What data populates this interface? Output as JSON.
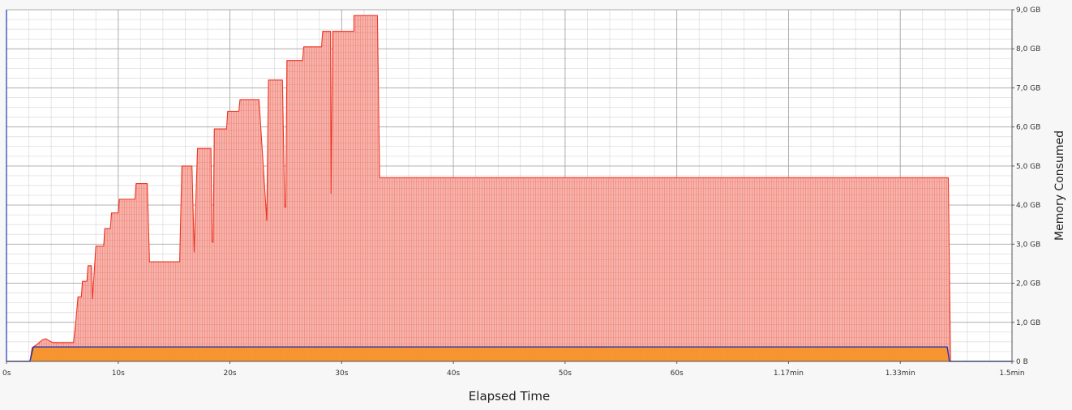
{
  "chart_data": {
    "type": "area",
    "xlabel": "Elapsed Time",
    "ylabel": "Memory Consumed",
    "x_unit": "seconds",
    "y_unit": "GB",
    "xlim": [
      0,
      90
    ],
    "ylim": [
      0,
      9
    ],
    "grid": true,
    "x_ticks": [
      {
        "value": 0,
        "label": "0s"
      },
      {
        "value": 10,
        "label": "10s"
      },
      {
        "value": 20,
        "label": "20s"
      },
      {
        "value": 30,
        "label": "30s"
      },
      {
        "value": 40,
        "label": "40s"
      },
      {
        "value": 50,
        "label": "50s"
      },
      {
        "value": 60,
        "label": "60s"
      },
      {
        "value": 70,
        "label": "1.17min"
      },
      {
        "value": 80,
        "label": "1.33min"
      },
      {
        "value": 90,
        "label": "1.5min"
      }
    ],
    "y_ticks": [
      {
        "value": 0,
        "label": "0 B"
      },
      {
        "value": 1,
        "label": "1,0 GB"
      },
      {
        "value": 2,
        "label": "2,0 GB"
      },
      {
        "value": 3,
        "label": "3,0 GB"
      },
      {
        "value": 4,
        "label": "4,0 GB"
      },
      {
        "value": 5,
        "label": "5,0 GB"
      },
      {
        "value": 6,
        "label": "6,0 GB"
      },
      {
        "value": 7,
        "label": "7,0 GB"
      },
      {
        "value": 8,
        "label": "8,0 GB"
      },
      {
        "value": 9,
        "label": "9,0 GB"
      }
    ],
    "series": [
      {
        "color": "#ee3322",
        "fill": "#f7b3ab",
        "x": [
          0,
          2.1,
          2.3,
          2.8,
          3.2,
          3.5,
          4.0,
          4.2,
          6.0,
          6.2,
          6.4,
          6.7,
          6.8,
          7.2,
          7.3,
          7.6,
          7.7,
          8.0,
          8.15,
          8.2,
          8.7,
          8.8,
          9.3,
          9.4,
          10.0,
          10.1,
          10.6,
          10.7,
          11.5,
          11.6,
          12.6,
          12.8,
          15.5,
          15.7,
          16.6,
          16.8,
          17.1,
          17.3,
          18.3,
          18.4,
          18.5,
          18.6,
          19.7,
          19.8,
          20.8,
          20.9,
          22.4,
          22.6,
          23.3,
          23.45,
          23.55,
          24.7,
          24.9,
          25.0,
          25.1,
          26.5,
          26.6,
          28.2,
          28.3,
          29.0,
          29.05,
          29.2,
          30.9,
          31.1,
          31.1,
          33.1,
          33.2,
          33.4,
          33.6,
          84.2,
          84.3,
          84.5,
          90
        ],
        "values": [
          0,
          0,
          0.35,
          0.45,
          0.55,
          0.58,
          0.5,
          0.48,
          0.48,
          1.0,
          1.65,
          1.65,
          2.05,
          2.05,
          2.45,
          2.45,
          1.6,
          2.95,
          2.95,
          2.95,
          2.95,
          3.4,
          3.4,
          3.8,
          3.8,
          4.15,
          4.15,
          4.15,
          4.15,
          4.55,
          4.55,
          2.55,
          2.55,
          5.0,
          5.0,
          2.8,
          5.45,
          5.45,
          5.45,
          3.05,
          3.05,
          5.95,
          5.95,
          6.4,
          6.4,
          6.7,
          6.7,
          6.7,
          3.6,
          7.2,
          7.2,
          7.2,
          3.95,
          3.95,
          7.7,
          7.7,
          8.05,
          8.05,
          8.45,
          8.45,
          4.3,
          8.45,
          8.45,
          8.45,
          8.85,
          8.85,
          8.85,
          4.7,
          4.7,
          4.7,
          4.7,
          0,
          0
        ]
      },
      {
        "color": "#1f35b5",
        "fill": "#f7932a",
        "x": [
          0,
          2.1,
          2.4,
          84.2,
          84.4,
          90
        ],
        "values": [
          0,
          0,
          0.37,
          0.37,
          0,
          0
        ]
      }
    ]
  }
}
